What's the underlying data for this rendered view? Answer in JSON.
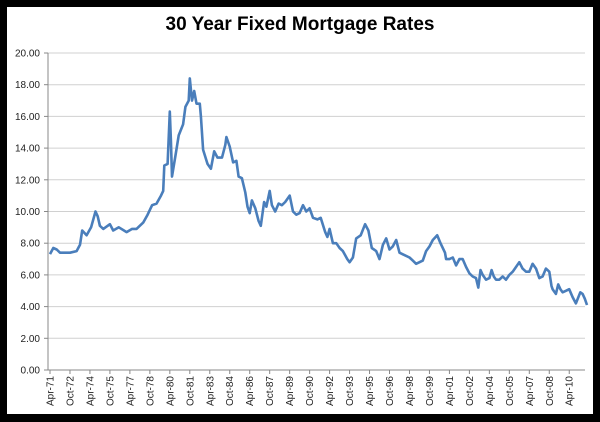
{
  "chart_data": {
    "type": "line",
    "title": "30 Year Fixed Mortgage Rates",
    "xlabel": "",
    "ylabel": "",
    "ylim": [
      0,
      20
    ],
    "y_ticks": [
      "0.00",
      "2.00",
      "4.00",
      "6.00",
      "8.00",
      "10.00",
      "12.00",
      "14.00",
      "16.00",
      "18.00",
      "20.00"
    ],
    "x_tick_labels": [
      "Apr-71",
      "Oct-72",
      "Apr-74",
      "Oct-75",
      "Apr-77",
      "Oct-78",
      "Apr-80",
      "Oct-81",
      "Apr-83",
      "Oct-84",
      "Apr-86",
      "Oct-87",
      "Apr-89",
      "Oct-90",
      "Apr-92",
      "Oct-93",
      "Apr-95",
      "Oct-96",
      "Apr-98",
      "Oct-99",
      "Apr-01",
      "Oct-02",
      "Apr-04",
      "Oct-05",
      "Apr-07",
      "Oct-08",
      "Apr-10"
    ],
    "x_range": [
      "1971-04",
      "2011-08"
    ],
    "grid": "horizontal",
    "legend": "none",
    "line_color": "#4a7ebb",
    "points": [
      [
        "1971-04",
        7.31
      ],
      [
        "1971-07",
        7.7
      ],
      [
        "1971-10",
        7.6
      ],
      [
        "1972-01",
        7.4
      ],
      [
        "1972-10",
        7.4
      ],
      [
        "1973-04",
        7.5
      ],
      [
        "1973-07",
        7.9
      ],
      [
        "1973-09",
        8.8
      ],
      [
        "1974-01",
        8.5
      ],
      [
        "1974-05",
        9.0
      ],
      [
        "1974-09",
        10.0
      ],
      [
        "1974-11",
        9.7
      ],
      [
        "1975-01",
        9.1
      ],
      [
        "1975-04",
        8.9
      ],
      [
        "1975-10",
        9.2
      ],
      [
        "1976-01",
        8.8
      ],
      [
        "1976-06",
        9.0
      ],
      [
        "1977-01",
        8.7
      ],
      [
        "1977-06",
        8.9
      ],
      [
        "1977-10",
        8.9
      ],
      [
        "1978-04",
        9.3
      ],
      [
        "1978-08",
        9.8
      ],
      [
        "1978-12",
        10.4
      ],
      [
        "1979-04",
        10.5
      ],
      [
        "1979-08",
        11.0
      ],
      [
        "1979-10",
        11.3
      ],
      [
        "1979-11",
        12.9
      ],
      [
        "1980-02",
        13.0
      ],
      [
        "1980-04",
        16.3
      ],
      [
        "1980-05",
        14.5
      ],
      [
        "1980-06",
        12.2
      ],
      [
        "1980-09",
        13.5
      ],
      [
        "1980-12",
        14.8
      ],
      [
        "1981-04",
        15.5
      ],
      [
        "1981-06",
        16.6
      ],
      [
        "1981-09",
        17.0
      ],
      [
        "1981-10",
        18.4
      ],
      [
        "1981-12",
        17.0
      ],
      [
        "1982-02",
        17.6
      ],
      [
        "1982-04",
        16.8
      ],
      [
        "1982-07",
        16.8
      ],
      [
        "1982-08",
        16.0
      ],
      [
        "1982-10",
        13.9
      ],
      [
        "1983-02",
        13.0
      ],
      [
        "1983-05",
        12.7
      ],
      [
        "1983-08",
        13.8
      ],
      [
        "1983-11",
        13.4
      ],
      [
        "1984-03",
        13.4
      ],
      [
        "1984-06",
        14.2
      ],
      [
        "1984-07",
        14.7
      ],
      [
        "1984-10",
        14.1
      ],
      [
        "1985-01",
        13.1
      ],
      [
        "1985-04",
        13.2
      ],
      [
        "1985-06",
        12.2
      ],
      [
        "1985-09",
        12.1
      ],
      [
        "1985-12",
        11.2
      ],
      [
        "1986-02",
        10.3
      ],
      [
        "1986-04",
        9.9
      ],
      [
        "1986-06",
        10.7
      ],
      [
        "1986-09",
        10.2
      ],
      [
        "1986-12",
        9.4
      ],
      [
        "1987-02",
        9.1
      ],
      [
        "1987-05",
        10.6
      ],
      [
        "1987-07",
        10.3
      ],
      [
        "1987-10",
        11.3
      ],
      [
        "1987-12",
        10.4
      ],
      [
        "1988-03",
        10.0
      ],
      [
        "1988-06",
        10.5
      ],
      [
        "1988-09",
        10.4
      ],
      [
        "1988-12",
        10.6
      ],
      [
        "1989-04",
        11.0
      ],
      [
        "1989-07",
        10.0
      ],
      [
        "1989-10",
        9.8
      ],
      [
        "1990-01",
        9.9
      ],
      [
        "1990-04",
        10.4
      ],
      [
        "1990-07",
        10.0
      ],
      [
        "1990-10",
        10.2
      ],
      [
        "1991-01",
        9.6
      ],
      [
        "1991-05",
        9.5
      ],
      [
        "1991-08",
        9.6
      ],
      [
        "1991-12",
        8.7
      ],
      [
        "1992-02",
        8.4
      ],
      [
        "1992-04",
        8.9
      ],
      [
        "1992-07",
        8.0
      ],
      [
        "1992-10",
        8.0
      ],
      [
        "1993-01",
        7.7
      ],
      [
        "1993-04",
        7.5
      ],
      [
        "1993-08",
        7.0
      ],
      [
        "1993-10",
        6.8
      ],
      [
        "1994-01",
        7.1
      ],
      [
        "1994-04",
        8.3
      ],
      [
        "1994-08",
        8.5
      ],
      [
        "1994-12",
        9.2
      ],
      [
        "1995-03",
        8.8
      ],
      [
        "1995-06",
        7.7
      ],
      [
        "1995-10",
        7.5
      ],
      [
        "1996-01",
        7.0
      ],
      [
        "1996-04",
        7.9
      ],
      [
        "1996-07",
        8.3
      ],
      [
        "1996-10",
        7.6
      ],
      [
        "1997-01",
        7.8
      ],
      [
        "1997-04",
        8.2
      ],
      [
        "1997-07",
        7.4
      ],
      [
        "1997-10",
        7.3
      ],
      [
        "1998-04",
        7.1
      ],
      [
        "1998-07",
        6.9
      ],
      [
        "1998-10",
        6.7
      ],
      [
        "1999-01",
        6.8
      ],
      [
        "1999-04",
        6.9
      ],
      [
        "1999-07",
        7.5
      ],
      [
        "1999-10",
        7.8
      ],
      [
        "2000-01",
        8.2
      ],
      [
        "2000-05",
        8.5
      ],
      [
        "2000-08",
        8.0
      ],
      [
        "2000-12",
        7.4
      ],
      [
        "2001-01",
        7.0
      ],
      [
        "2001-04",
        7.0
      ],
      [
        "2001-07",
        7.1
      ],
      [
        "2001-10",
        6.6
      ],
      [
        "2002-01",
        7.0
      ],
      [
        "2002-04",
        7.0
      ],
      [
        "2002-07",
        6.5
      ],
      [
        "2002-10",
        6.1
      ],
      [
        "2003-01",
        5.9
      ],
      [
        "2003-04",
        5.8
      ],
      [
        "2003-06",
        5.2
      ],
      [
        "2003-08",
        6.3
      ],
      [
        "2003-10",
        6.0
      ],
      [
        "2004-01",
        5.7
      ],
      [
        "2004-04",
        5.8
      ],
      [
        "2004-06",
        6.3
      ],
      [
        "2004-08",
        5.9
      ],
      [
        "2004-10",
        5.7
      ],
      [
        "2005-01",
        5.7
      ],
      [
        "2005-04",
        5.9
      ],
      [
        "2005-07",
        5.7
      ],
      [
        "2005-10",
        6.0
      ],
      [
        "2006-01",
        6.2
      ],
      [
        "2006-04",
        6.5
      ],
      [
        "2006-07",
        6.8
      ],
      [
        "2006-10",
        6.4
      ],
      [
        "2007-01",
        6.2
      ],
      [
        "2007-04",
        6.2
      ],
      [
        "2007-07",
        6.7
      ],
      [
        "2007-10",
        6.4
      ],
      [
        "2008-01",
        5.8
      ],
      [
        "2008-04",
        5.9
      ],
      [
        "2008-07",
        6.4
      ],
      [
        "2008-10",
        6.2
      ],
      [
        "2008-12",
        5.3
      ],
      [
        "2009-01",
        5.1
      ],
      [
        "2009-04",
        4.8
      ],
      [
        "2009-06",
        5.4
      ],
      [
        "2009-08",
        5.1
      ],
      [
        "2009-10",
        4.9
      ],
      [
        "2010-01",
        5.0
      ],
      [
        "2010-04",
        5.1
      ],
      [
        "2010-07",
        4.6
      ],
      [
        "2010-10",
        4.2
      ],
      [
        "2011-02",
        4.9
      ],
      [
        "2011-04",
        4.8
      ],
      [
        "2011-06",
        4.5
      ],
      [
        "2011-08",
        4.1
      ]
    ]
  }
}
